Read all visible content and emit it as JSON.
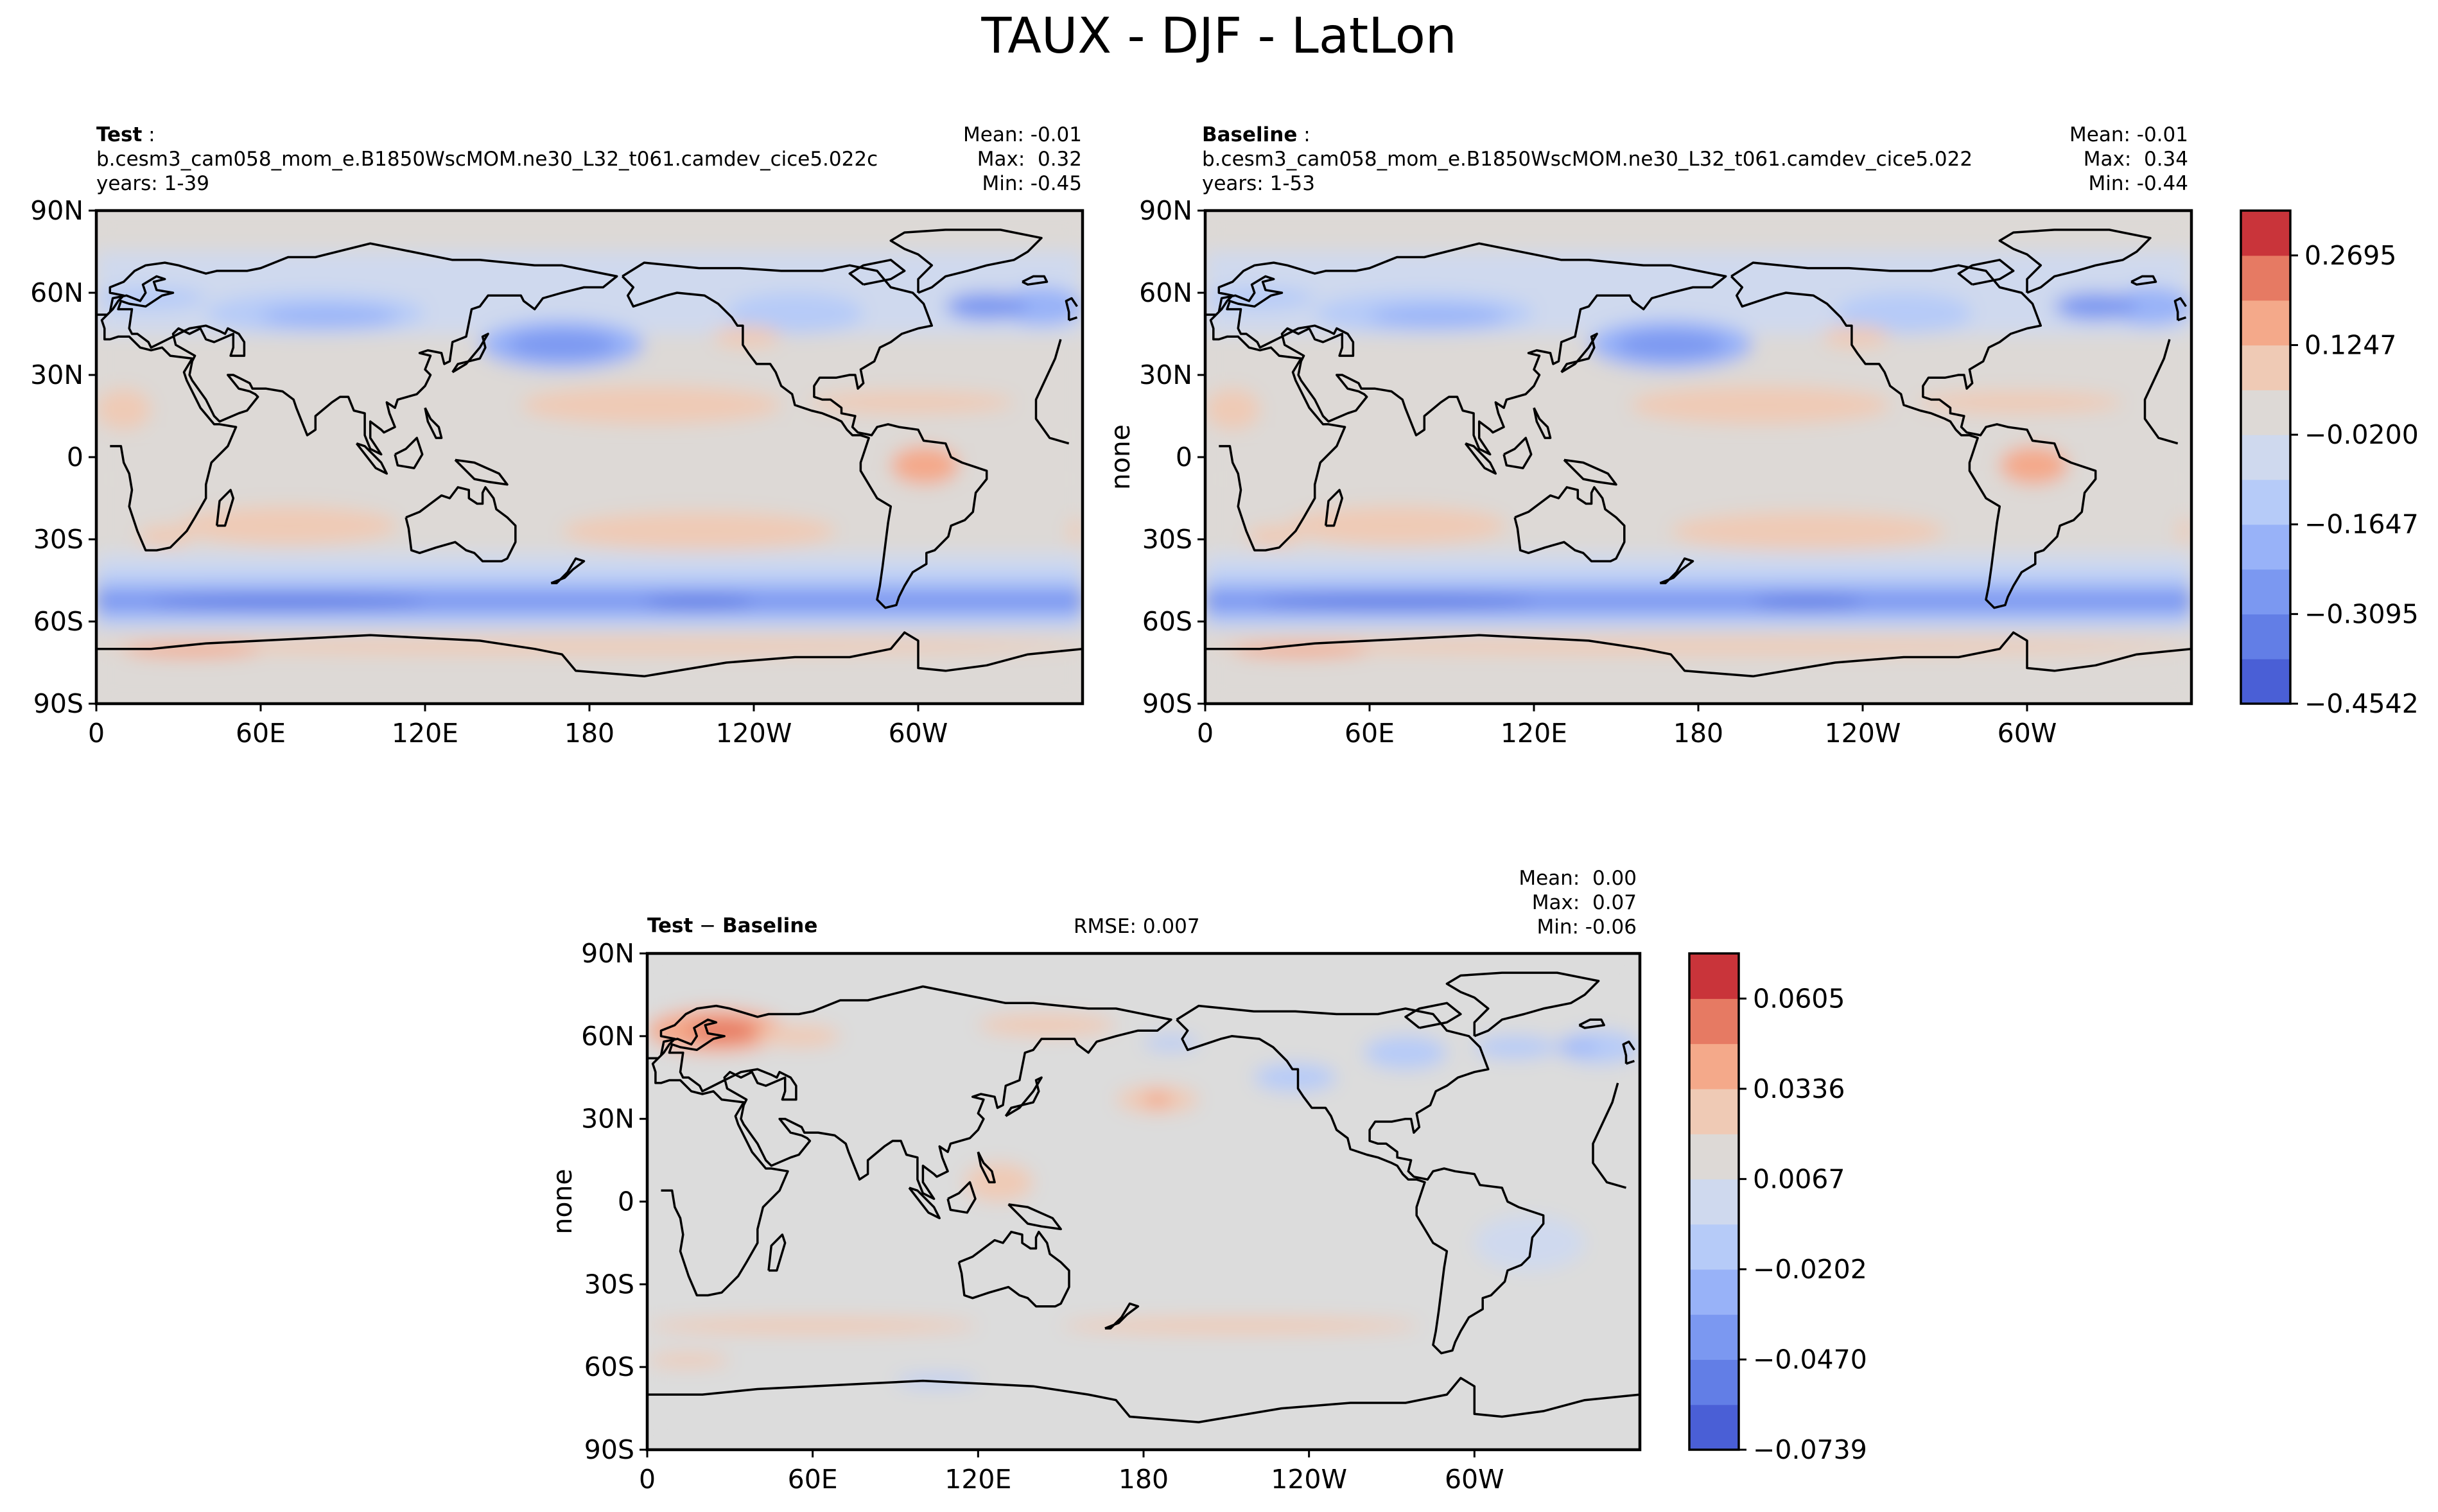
{
  "figure_title": "TAUX - DJF - LatLon",
  "chart_data": [
    {
      "type": "heatmap",
      "panel": "test",
      "title_bold": "Test",
      "title_suffix": " :",
      "case": "b.cesm3_cam058_mom_e.B1850WscMOM.ne30_L32_t061.camdev_cice5.022c",
      "years": "years: 1-39",
      "stats": [
        "Mean: -0.01",
        "Max:  0.32",
        "Min: -0.45"
      ],
      "xlabel": "",
      "ylabel": "",
      "xlim": [
        0,
        360
      ],
      "ylim": [
        -90,
        90
      ],
      "x_ticks": [
        "0",
        "60E",
        "120E",
        "180",
        "120W",
        "60W"
      ],
      "y_ticks": [
        "90N",
        "60N",
        "30N",
        "0",
        "30S",
        "60S",
        "90S"
      ],
      "mean": -0.01,
      "max": 0.32,
      "min": -0.45
    },
    {
      "type": "heatmap",
      "panel": "baseline",
      "title_bold": "Baseline",
      "title_suffix": " :",
      "case": "b.cesm3_cam058_mom_e.B1850WscMOM.ne30_L32_t061.camdev_cice5.022",
      "years": "years: 1-53",
      "stats": [
        "Mean: -0.01",
        "Max:  0.34",
        "Min: -0.44"
      ],
      "xlabel": "",
      "ylabel": "none",
      "xlim": [
        0,
        360
      ],
      "ylim": [
        -90,
        90
      ],
      "x_ticks": [
        "0",
        "60E",
        "120E",
        "180",
        "120W",
        "60W"
      ],
      "y_ticks": [
        "90N",
        "60N",
        "30N",
        "0",
        "30S",
        "60S",
        "90S"
      ],
      "colorbar_ticks": [
        "0.2695",
        "0.1247",
        "−0.0200",
        "−0.1647",
        "−0.3095",
        "−0.4542"
      ],
      "mean": -0.01,
      "max": 0.34,
      "min": -0.44
    },
    {
      "type": "heatmap",
      "panel": "difference",
      "title_bold_1": "Test",
      "title_mid": " − ",
      "title_bold_2": "Baseline",
      "rmse": "RMSE: 0.007",
      "stats": [
        "Mean:  0.00",
        "Max:  0.07",
        "Min: -0.06"
      ],
      "xlabel": "",
      "ylabel": "none",
      "xlim": [
        0,
        360
      ],
      "ylim": [
        -90,
        90
      ],
      "x_ticks": [
        "0",
        "60E",
        "120E",
        "180",
        "120W",
        "60W"
      ],
      "y_ticks": [
        "90N",
        "60N",
        "30N",
        "0",
        "30S",
        "60S",
        "90S"
      ],
      "colorbar_ticks": [
        "0.0605",
        "0.0336",
        "0.0067",
        "−0.0202",
        "−0.0470",
        "−0.0739"
      ],
      "mean": 0.0,
      "max": 0.07,
      "min": -0.06
    }
  ],
  "colors": {
    "cmap": [
      "#4a5fd6",
      "#627ee6",
      "#7b98f1",
      "#98b2f8",
      "#b6cbf8",
      "#cfd9ee",
      "#ddd9d6",
      "#efcab5",
      "#f4a98a",
      "#e67a63",
      "#c9343a"
    ],
    "neutral_main": "#ddd9d6",
    "neutral_diff": "#dcdcdc"
  }
}
